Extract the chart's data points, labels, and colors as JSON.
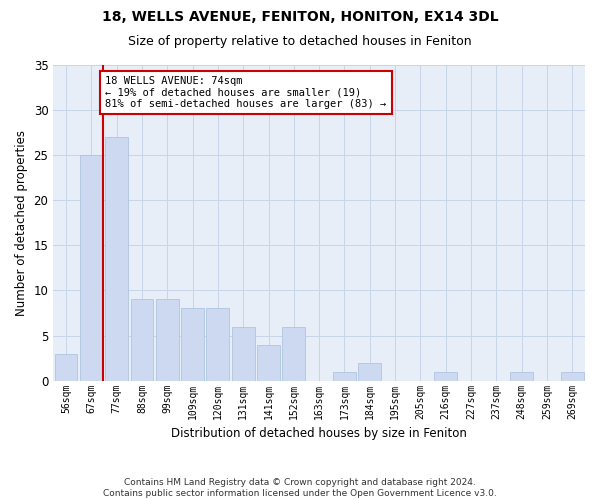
{
  "title1": "18, WELLS AVENUE, FENITON, HONITON, EX14 3DL",
  "title2": "Size of property relative to detached houses in Feniton",
  "xlabel": "Distribution of detached houses by size in Feniton",
  "ylabel": "Number of detached properties",
  "categories": [
    "56sqm",
    "67sqm",
    "77sqm",
    "88sqm",
    "99sqm",
    "109sqm",
    "120sqm",
    "131sqm",
    "141sqm",
    "152sqm",
    "163sqm",
    "173sqm",
    "184sqm",
    "195sqm",
    "205sqm",
    "216sqm",
    "227sqm",
    "237sqm",
    "248sqm",
    "259sqm",
    "269sqm"
  ],
  "values": [
    3,
    25,
    27,
    9,
    9,
    8,
    8,
    6,
    4,
    6,
    0,
    1,
    2,
    0,
    0,
    1,
    0,
    0,
    1,
    0,
    1
  ],
  "bar_color": "#ccd9f0",
  "bar_edge_color": "#a8bedd",
  "vline_color": "#cc0000",
  "annotation_text": "18 WELLS AVENUE: 74sqm\n← 19% of detached houses are smaller (19)\n81% of semi-detached houses are larger (83) →",
  "annotation_box_color": "#ffffff",
  "annotation_box_edge": "#cc0000",
  "ylim": [
    0,
    35
  ],
  "yticks": [
    0,
    5,
    10,
    15,
    20,
    25,
    30,
    35
  ],
  "footer": "Contains HM Land Registry data © Crown copyright and database right 2024.\nContains public sector information licensed under the Open Government Licence v3.0.",
  "bg_color": "#ffffff",
  "plot_bg_color": "#e8eef8",
  "grid_color": "#c8d4e8"
}
